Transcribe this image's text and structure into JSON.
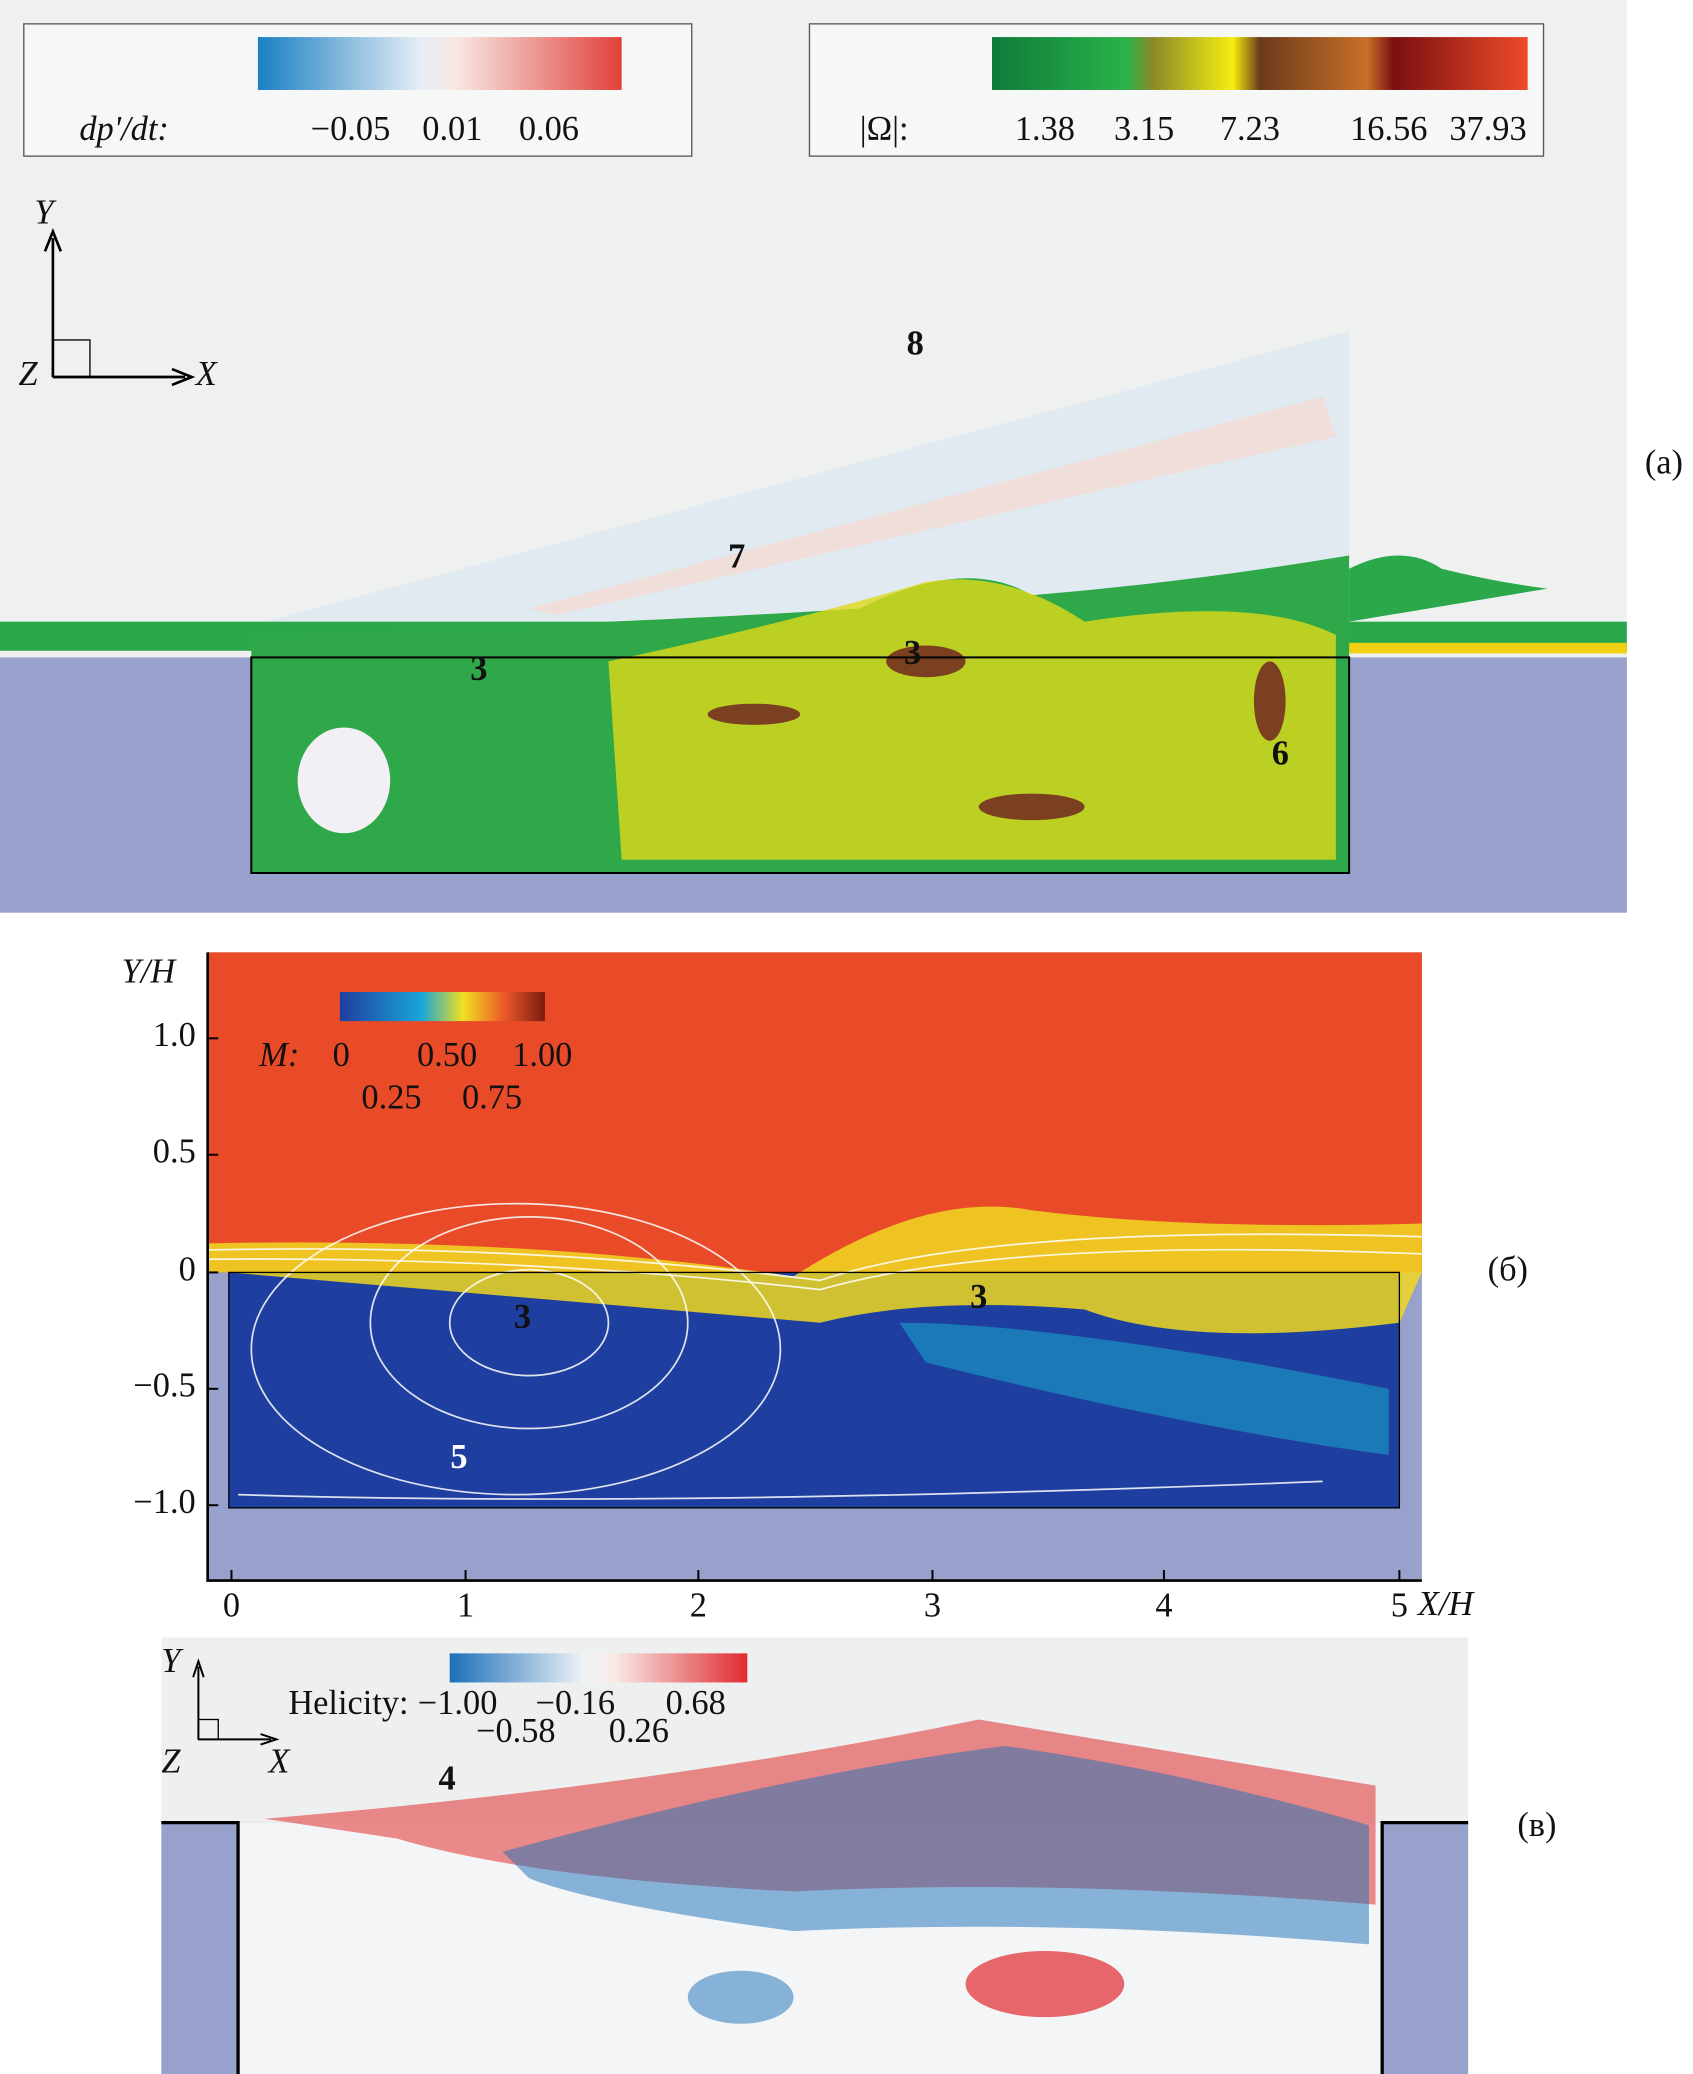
{
  "panel_a": {
    "label": "(a)",
    "legend_pressure": {
      "label": "dp'/dt:",
      "ticks": [
        "−0.05",
        "0.01",
        "0.06"
      ]
    },
    "legend_vorticity": {
      "label": "|Ω|:",
      "ticks": [
        "1.38",
        "3.15",
        "7.23",
        "16.56",
        "37.93"
      ]
    },
    "axes": {
      "y": "Y",
      "z": "Z",
      "x": "X"
    },
    "annotations": [
      "8",
      "7",
      "3",
      "3",
      "6"
    ]
  },
  "panel_b": {
    "label": "(б)",
    "y_axis_label": "Y/H",
    "x_axis_label": "X/H",
    "yticks": [
      "1.0",
      "0.5",
      "0",
      "−0.5",
      "−1.0"
    ],
    "xticks": [
      "0",
      "1",
      "2",
      "3",
      "4",
      "5"
    ],
    "legend": {
      "label": "M:",
      "ticks": [
        "0",
        "0.50",
        "1.00",
        "0.25",
        "0.75"
      ]
    },
    "annotations": [
      "3",
      "3",
      "5"
    ]
  },
  "panel_c": {
    "label": "(в)",
    "legend": {
      "label": "Helicity:",
      "ticks": [
        "−1.00",
        "−0.16",
        "0.68",
        "−0.58",
        "0.26"
      ]
    },
    "axes": {
      "y": "Y",
      "z": "Z",
      "x": "X"
    },
    "annotations": [
      "4"
    ]
  }
}
